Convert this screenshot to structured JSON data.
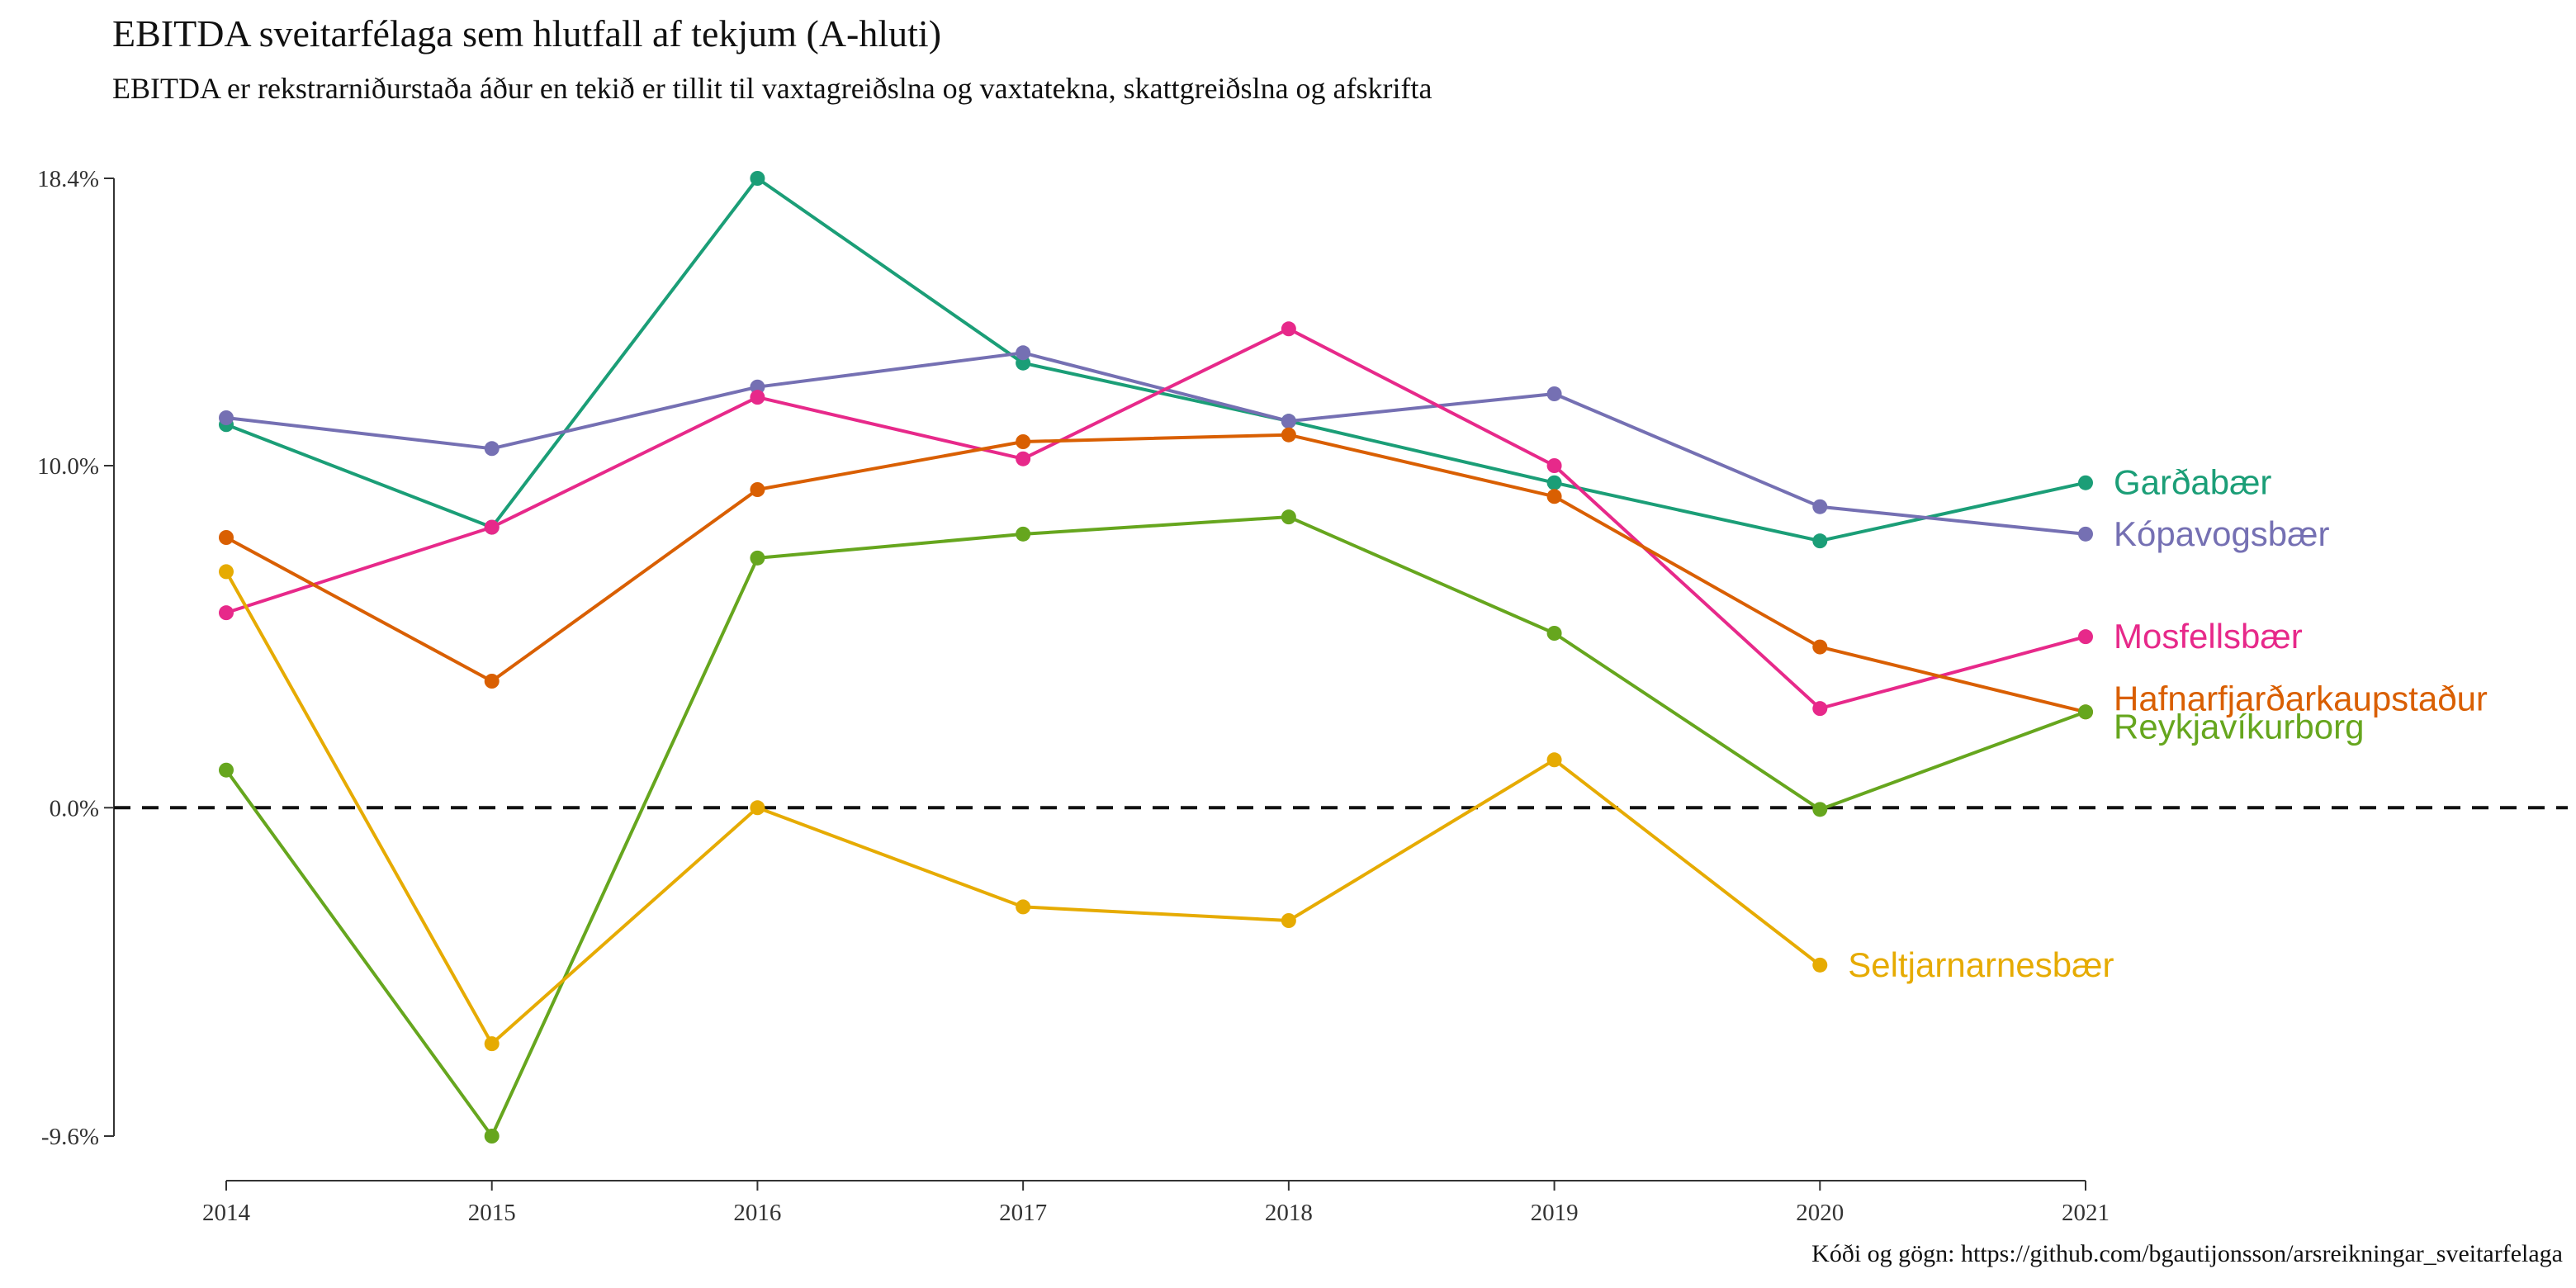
{
  "title": "EBITDA sveitarfélaga sem hlutfall af tekjum (A-hluti)",
  "subtitle": "EBITDA er rekstrarniðurstaða áður en tekið er tillit til vaxtagreiðslna og vaxtatekna, skattgreiðslna og afskrifta",
  "caption": "Kóði og gögn: https://github.com/bgautijonsson/arsreikningar_sveitarfelaga",
  "chart_data": {
    "type": "line",
    "title": "EBITDA sveitarfélaga sem hlutfall af tekjum (A-hluti)",
    "subtitle": "EBITDA er rekstrarniðurstaða áður en tekið er tillit til vaxtagreiðslna og vaxtatekna, skattgreiðslna og afskrifta",
    "x": [
      2014,
      2015,
      2016,
      2017,
      2018,
      2019,
      2020,
      2021
    ],
    "x_tick_labels": [
      "2014",
      "2015",
      "2016",
      "2017",
      "2018",
      "2019",
      "2020",
      "2021"
    ],
    "y_ticks": [
      -9.6,
      0.0,
      10.0,
      18.4
    ],
    "y_tick_labels": [
      "-9.6%",
      "0.0%",
      "10.0%",
      "18.4%"
    ],
    "ylim": [
      -9.6,
      18.4
    ],
    "reference_line": 0.0,
    "grid": false,
    "legend": "direct labels at line ends",
    "series": [
      {
        "name": "Garðabær",
        "color": "#1b9e77",
        "values": [
          11.2,
          8.2,
          18.4,
          13.0,
          11.3,
          9.5,
          7.8,
          9.5
        ]
      },
      {
        "name": "Kópavogsbær",
        "color": "#7570b3",
        "values": [
          11.4,
          10.5,
          12.3,
          13.3,
          11.3,
          12.1,
          8.8,
          8.0
        ]
      },
      {
        "name": "Mosfellsbær",
        "color": "#e7298a",
        "values": [
          5.7,
          8.2,
          12.0,
          10.2,
          14.0,
          10.0,
          2.9,
          5.0
        ]
      },
      {
        "name": "Hafnarfjarðarkaupstaður",
        "color": "#d95f02",
        "values": [
          7.9,
          3.7,
          9.3,
          10.7,
          10.9,
          9.1,
          4.7,
          2.8
        ]
      },
      {
        "name": "Reykjavíkurborg",
        "color": "#66a61e",
        "values": [
          1.1,
          -9.6,
          7.3,
          8.0,
          8.5,
          5.1,
          -0.05,
          2.8
        ]
      },
      {
        "name": "Seltjarnarnesbær",
        "color": "#e6ab02",
        "values": [
          6.9,
          -6.9,
          0.0,
          -2.9,
          -3.3,
          1.4,
          -4.6,
          null
        ]
      }
    ]
  }
}
